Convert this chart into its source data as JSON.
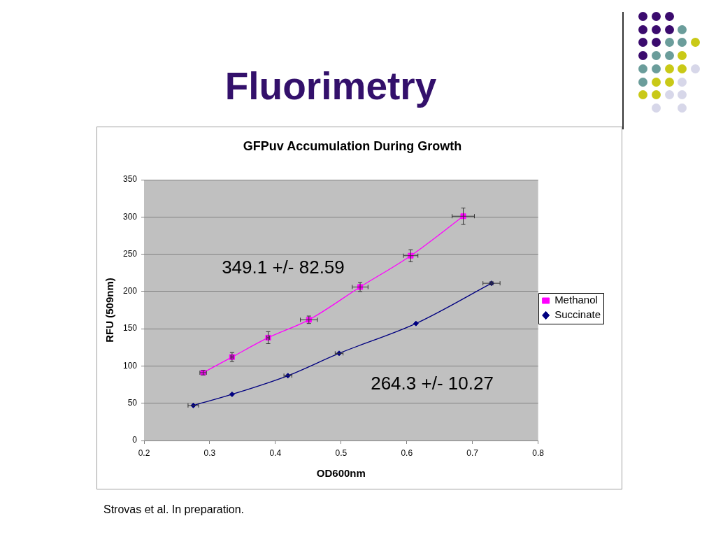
{
  "chart_data": {
    "type": "line",
    "title": "Fluorimetry",
    "subtitle": "GFPuv Accumulation During Growth",
    "xlabel": "OD600nm",
    "ylabel": "RFU (509nm)",
    "annotations": [
      "349.1 +/- 82.59",
      "264.3 +/- 10.27",
      "Strovas et al. In preparation."
    ],
    "series": [
      {
        "name": "Methanol",
        "color": "#ff00ff",
        "marker": "square",
        "x": [
          0.29,
          0.334,
          0.389,
          0.451,
          0.529,
          0.606,
          0.686
        ],
        "values": [
          91,
          112,
          138,
          162,
          206,
          248,
          301
        ],
        "errors": [
          3,
          6,
          8,
          5,
          6,
          8,
          11
        ],
        "xerrors": [
          0.005,
          0.002,
          0.002,
          0.013,
          0.012,
          0.011,
          0.017
        ]
      },
      {
        "name": "Succinate",
        "color": "#000080",
        "marker": "diamond",
        "x": [
          0.275,
          0.334,
          0.419,
          0.497,
          0.614,
          0.729
        ],
        "values": [
          47,
          62,
          87,
          117,
          157,
          211
        ],
        "errors": [
          null,
          null,
          null,
          null,
          null,
          2
        ],
        "xerrors": [
          0.008,
          null,
          0.006,
          0.006,
          null,
          0.013
        ]
      }
    ],
    "xlim": [
      0.2,
      0.8
    ],
    "xticks": [
      0.2,
      0.3,
      0.4,
      0.5,
      0.6,
      0.7,
      0.8
    ],
    "ylim": [
      0,
      350
    ],
    "yticks": [
      0,
      50,
      100,
      150,
      200,
      250,
      300,
      350
    ],
    "grid": "y",
    "legend": "right",
    "line_style": "solid"
  }
}
